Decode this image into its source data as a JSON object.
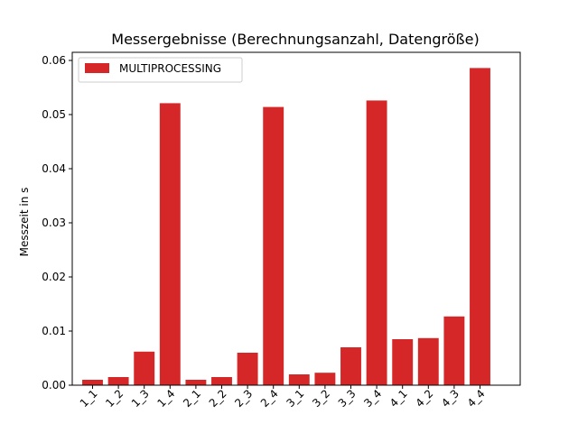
{
  "chart_data": {
    "type": "bar",
    "title": "Messergebnisse (Berechnungsanzahl, Datengröße)",
    "xlabel": "",
    "ylabel": "Messzeit in s",
    "categories": [
      "1_1",
      "1_2",
      "1_3",
      "1_4",
      "2_1",
      "2_2",
      "2_3",
      "2_4",
      "3_1",
      "3_2",
      "3_3",
      "3_4",
      "4_1",
      "4_2",
      "4_3",
      "4_4"
    ],
    "series": [
      {
        "name": "MULTIPROCESSING",
        "color": "#d62728",
        "values": [
          0.001,
          0.0015,
          0.0062,
          0.0521,
          0.001,
          0.0015,
          0.006,
          0.0514,
          0.002,
          0.0023,
          0.007,
          0.0526,
          0.0085,
          0.0087,
          0.0127,
          0.0586
        ]
      }
    ],
    "ylim": [
      0,
      0.0615
    ],
    "yticks": [
      "0.00",
      "0.01",
      "0.02",
      "0.03",
      "0.04",
      "0.05",
      "0.06"
    ],
    "legend_position": "top-left",
    "grid": false
  }
}
